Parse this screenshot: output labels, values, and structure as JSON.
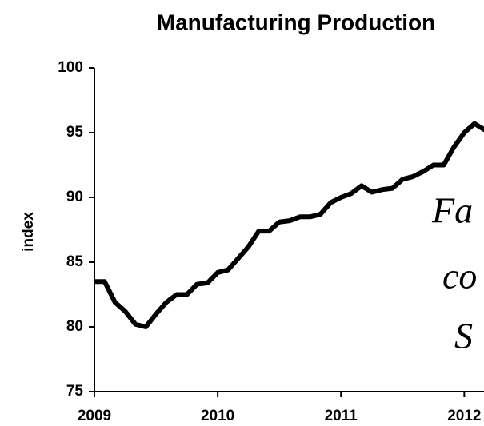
{
  "chart_data": {
    "type": "line",
    "title": "Manufacturing Production",
    "ylabel": "index",
    "x": [
      2009,
      2009.083,
      2009.167,
      2009.25,
      2009.333,
      2009.417,
      2009.5,
      2009.583,
      2009.667,
      2009.75,
      2009.833,
      2009.917,
      2010,
      2010.083,
      2010.167,
      2010.25,
      2010.333,
      2010.417,
      2010.5,
      2010.583,
      2010.667,
      2010.75,
      2010.833,
      2010.917,
      2011,
      2011.083,
      2011.167,
      2011.25,
      2011.333,
      2011.417,
      2011.5,
      2011.583,
      2011.667,
      2011.75,
      2011.833,
      2011.917,
      2012,
      2012.083,
      2012.167
    ],
    "series": [
      {
        "name": "index",
        "color": "#000000",
        "values": [
          83.5,
          83.5,
          81.9,
          81.2,
          80.2,
          80.0,
          81.0,
          81.9,
          82.5,
          82.5,
          83.3,
          83.4,
          84.2,
          84.4,
          85.3,
          86.2,
          87.4,
          87.4,
          88.1,
          88.2,
          88.5,
          88.5,
          88.7,
          89.6,
          90.0,
          90.3,
          90.9,
          90.4,
          90.6,
          90.7,
          91.4,
          91.6,
          92.0,
          92.5,
          92.5,
          93.9,
          95.0,
          95.7,
          95.2
        ]
      }
    ],
    "xlim": [
      2009,
      2012.16
    ],
    "xticks": [
      2009,
      2010,
      2011,
      2012
    ],
    "ylim": [
      75,
      100
    ],
    "yticks": [
      75,
      80,
      85,
      90,
      95,
      100
    ],
    "annotations": [
      "Fa",
      "co",
      "S"
    ]
  }
}
